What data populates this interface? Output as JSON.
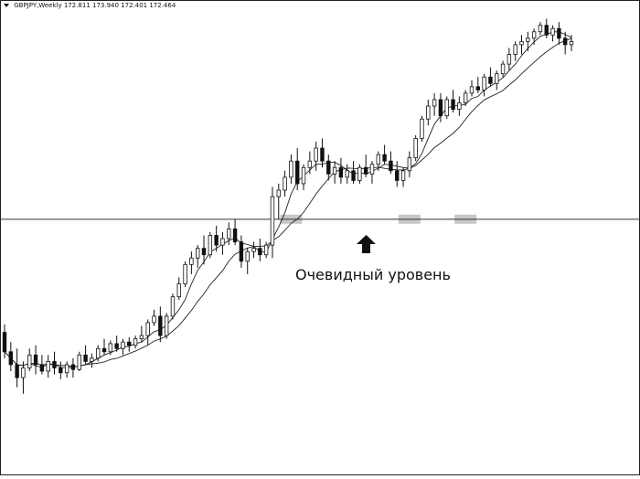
{
  "header": {
    "symbol": "GBPJPY,Weekly",
    "ohlc": "172.811 173.940 172.401 172.464"
  },
  "annotation": {
    "text": "Очевидный уровень"
  },
  "chart_data": {
    "type": "candlestick",
    "title": "GBPJPY,Weekly",
    "ylim": [
      100,
      240
    ],
    "grid": false,
    "horizontal_level": 175,
    "level_touches": [
      46,
      65,
      74
    ],
    "moving_averages": [
      "short",
      "long"
    ],
    "candles": [
      [
        140.0,
        142.5,
        132.0,
        134.0
      ],
      [
        134.0,
        137.0,
        128.0,
        130.0
      ],
      [
        130.0,
        135.0,
        123.0,
        126.0
      ],
      [
        126.0,
        131.0,
        121.0,
        129.0
      ],
      [
        129.0,
        135.0,
        128.0,
        133.0
      ],
      [
        133.0,
        136.0,
        127.0,
        130.0
      ],
      [
        130.0,
        133.0,
        127.0,
        128.0
      ],
      [
        128.0,
        133.0,
        126.0,
        131.0
      ],
      [
        131.0,
        134.0,
        127.0,
        129.0
      ],
      [
        129.0,
        131.0,
        125.5,
        127.5
      ],
      [
        127.5,
        131.0,
        126.0,
        130.0
      ],
      [
        130.0,
        132.0,
        126.0,
        128.5
      ],
      [
        128.5,
        134.0,
        128.0,
        133.0
      ],
      [
        133.0,
        136.0,
        130.0,
        131.0
      ],
      [
        131.0,
        133.5,
        129.0,
        132.0
      ],
      [
        132.0,
        136.0,
        131.0,
        135.0
      ],
      [
        135.0,
        138.0,
        133.0,
        134.0
      ],
      [
        134.0,
        137.5,
        133.0,
        136.5
      ],
      [
        136.5,
        139.0,
        134.0,
        135.0
      ],
      [
        135.0,
        138.0,
        133.0,
        137.0
      ],
      [
        137.0,
        138.5,
        134.0,
        136.0
      ],
      [
        136.0,
        139.0,
        135.0,
        138.0
      ],
      [
        138.0,
        142.0,
        137.0,
        139.0
      ],
      [
        139.0,
        144.0,
        136.0,
        143.0
      ],
      [
        143.0,
        147.0,
        142.0,
        145.0
      ],
      [
        145.0,
        148.0,
        137.0,
        139.0
      ],
      [
        139.0,
        146.0,
        138.0,
        145.0
      ],
      [
        145.0,
        152.0,
        144.0,
        151.0
      ],
      [
        151.0,
        157.0,
        150.0,
        155.0
      ],
      [
        155.0,
        162.0,
        154.0,
        161.0
      ],
      [
        161.0,
        165.0,
        158.0,
        163.0
      ],
      [
        163.0,
        167.0,
        160.0,
        166.0
      ],
      [
        166.0,
        170.0,
        161.0,
        164.0
      ],
      [
        164.0,
        171.0,
        163.0,
        170.0
      ],
      [
        170.0,
        173.0,
        165.0,
        167.0
      ],
      [
        167.0,
        171.0,
        164.0,
        169.0
      ],
      [
        169.0,
        174.0,
        167.0,
        172.0
      ],
      [
        172.0,
        175.0,
        167.0,
        168.0
      ],
      [
        168.0,
        170.0,
        160.0,
        162.0
      ],
      [
        162.0,
        166.0,
        158.0,
        165.0
      ],
      [
        165.0,
        168.0,
        163.0,
        166.0
      ],
      [
        166.0,
        169.0,
        162.0,
        164.0
      ],
      [
        164.0,
        168.0,
        163.0,
        167.0
      ],
      [
        167.0,
        185.0,
        163.0,
        182.0
      ],
      [
        182.0,
        186.0,
        175.0,
        184.0
      ],
      [
        184.0,
        190.0,
        182.0,
        188.0
      ],
      [
        188.0,
        195.0,
        186.0,
        193.0
      ],
      [
        193.0,
        197.0,
        184.0,
        186.0
      ],
      [
        186.0,
        192.0,
        184.0,
        191.0
      ],
      [
        191.0,
        196.0,
        189.0,
        193.0
      ],
      [
        193.0,
        199.0,
        190.0,
        197.0
      ],
      [
        197.0,
        200.0,
        191.0,
        193.0
      ],
      [
        193.0,
        195.0,
        187.0,
        189.0
      ],
      [
        189.0,
        193.0,
        186.0,
        191.0
      ],
      [
        191.0,
        194.0,
        186.0,
        188.0
      ],
      [
        188.0,
        192.0,
        186.0,
        190.0
      ],
      [
        190.0,
        193.0,
        186.0,
        187.0
      ],
      [
        187.0,
        192.0,
        186.0,
        191.0
      ],
      [
        191.0,
        195.0,
        188.0,
        189.0
      ],
      [
        189.0,
        193.0,
        186.0,
        192.0
      ],
      [
        192.0,
        196.0,
        190.0,
        195.0
      ],
      [
        195.0,
        198.0,
        192.0,
        193.0
      ],
      [
        193.0,
        196.0,
        189.0,
        190.0
      ],
      [
        190.0,
        193.0,
        185.0,
        187.0
      ],
      [
        187.0,
        191.0,
        185.0,
        190.0
      ],
      [
        190.0,
        196.0,
        188.0,
        194.0
      ],
      [
        194.0,
        201.0,
        193.0,
        200.0
      ],
      [
        200.0,
        207.0,
        199.0,
        206.0
      ],
      [
        206.0,
        212.0,
        204.0,
        210.0
      ],
      [
        210.0,
        214.0,
        207.0,
        212.0
      ],
      [
        212.0,
        214.0,
        205.0,
        207.0
      ],
      [
        207.0,
        213.0,
        206.0,
        212.0
      ],
      [
        212.0,
        215.0,
        208.0,
        209.0
      ],
      [
        209.0,
        213.0,
        207.0,
        211.0
      ],
      [
        211.0,
        215.0,
        210.0,
        214.0
      ],
      [
        214.0,
        218.0,
        213.0,
        216.0
      ],
      [
        216.0,
        219.0,
        214.0,
        215.0
      ],
      [
        215.0,
        220.0,
        213.0,
        219.0
      ],
      [
        219.0,
        222.0,
        216.0,
        217.0
      ],
      [
        217.0,
        221.0,
        215.0,
        220.0
      ],
      [
        220.0,
        224.0,
        219.0,
        223.0
      ],
      [
        223.0,
        228.0,
        221.0,
        226.0
      ],
      [
        226.0,
        230.0,
        224.0,
        229.0
      ],
      [
        229.0,
        232.0,
        226.0,
        230.0
      ],
      [
        230.0,
        233.0,
        227.0,
        231.0
      ],
      [
        231.0,
        234.0,
        229.0,
        233.0
      ],
      [
        233.0,
        236.0,
        232.0,
        235.0
      ],
      [
        235.0,
        237.0,
        231.0,
        232.0
      ],
      [
        232.0,
        235.0,
        230.0,
        234.0
      ],
      [
        234.0,
        236.0,
        229.0,
        231.0
      ],
      [
        231.0,
        233.0,
        226.0,
        229.0
      ],
      [
        229.0,
        232.0,
        227.0,
        230.0
      ]
    ]
  }
}
